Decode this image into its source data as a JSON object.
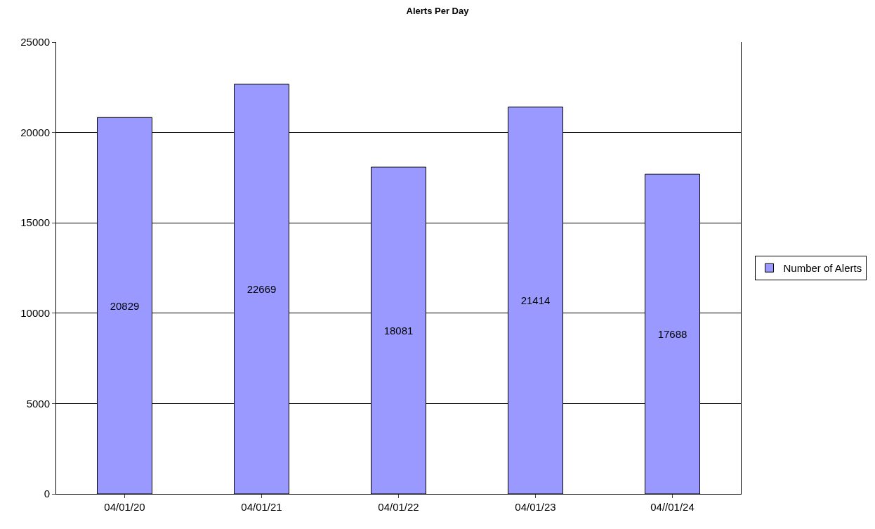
{
  "chart_data": {
    "type": "bar",
    "title": "Alerts Per Day",
    "categories": [
      "04/01/20",
      "04/01/21",
      "04/01/22",
      "04/01/23",
      "04//01/24"
    ],
    "series": [
      {
        "name": "Number of Alerts",
        "color": "#9999ff",
        "values": [
          20829,
          22669,
          18081,
          21414,
          17688
        ]
      }
    ],
    "ylim": [
      0,
      25000
    ],
    "yticks": [
      0,
      5000,
      10000,
      15000,
      20000,
      25000
    ],
    "grid": "y",
    "legend": "right",
    "data_labels": true
  }
}
